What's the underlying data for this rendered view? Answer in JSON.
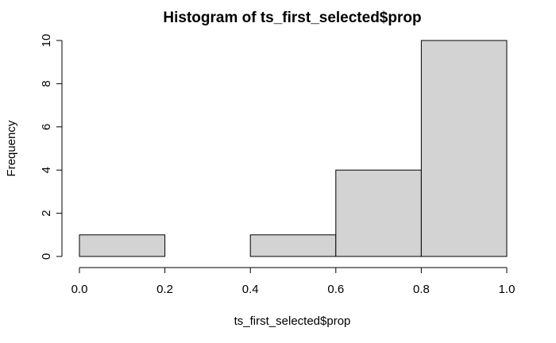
{
  "chart_data": {
    "type": "bar",
    "title": "Histogram of ts_first_selected$prop",
    "xlabel": "ts_first_selected$prop",
    "ylabel": "Frequency",
    "bins": [
      {
        "start": 0.0,
        "end": 0.2,
        "count": 1
      },
      {
        "start": 0.2,
        "end": 0.4,
        "count": 0
      },
      {
        "start": 0.4,
        "end": 0.6,
        "count": 1
      },
      {
        "start": 0.6,
        "end": 0.8,
        "count": 4
      },
      {
        "start": 0.8,
        "end": 1.0,
        "count": 10
      }
    ],
    "xlim": [
      0.0,
      1.0
    ],
    "ylim": [
      0,
      10
    ],
    "x_ticks": [
      "0.0",
      "0.2",
      "0.4",
      "0.6",
      "0.8",
      "1.0"
    ],
    "y_ticks": [
      "0",
      "2",
      "4",
      "6",
      "8",
      "10"
    ],
    "bar_color": "#d3d3d3",
    "grid": false
  }
}
